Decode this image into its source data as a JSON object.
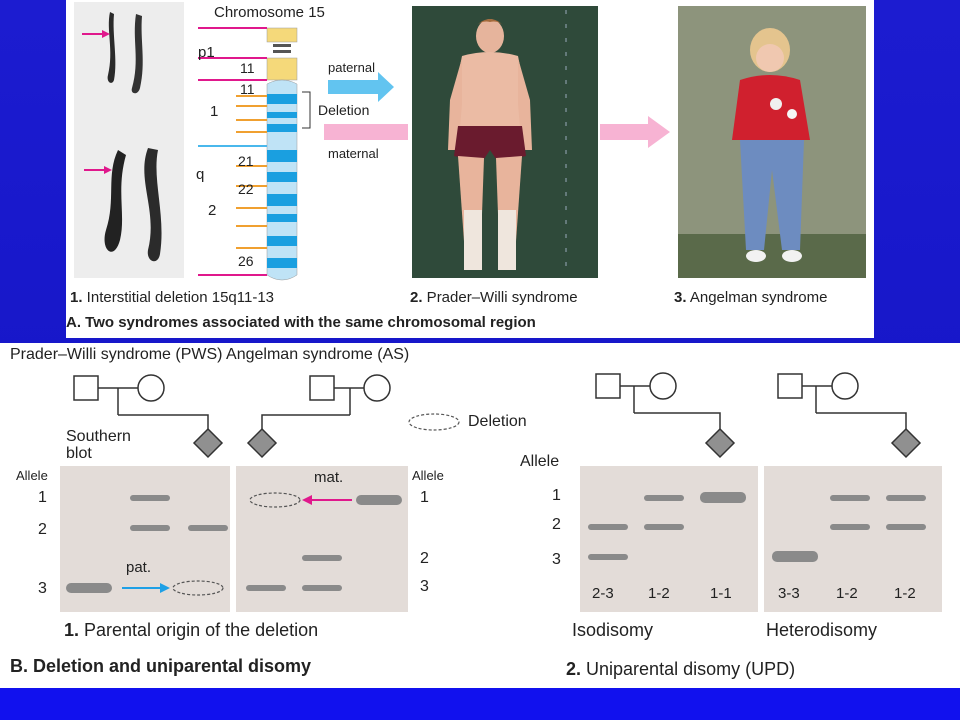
{
  "panelA": {
    "chromosome_title": "Chromosome 15",
    "arm_p": "p1",
    "band_11_upper": "11",
    "band_11_lower": "11",
    "arm_q_region1": "1",
    "deletion_label": "Deletion",
    "arm_q": "q",
    "band_21": "21",
    "band_22": "22",
    "arm_q_region2": "2",
    "band_26": "26",
    "paternal_label": "paternal",
    "maternal_label": "maternal",
    "caption1_num": "1.",
    "caption1_text": " Interstitial deletion 15q11-13",
    "caption2_num": "2.",
    "caption2_text": " Prader–Willi syndrome",
    "caption3_num": "3.",
    "caption3_text": " Angelman syndrome",
    "section_title": "A. Two syndromes associated with the same chromosomal region"
  },
  "panelB": {
    "header": "Prader–Willi syndrome (PWS) Angelman syndrome (AS)",
    "southern_blot_1": "Southern",
    "southern_blot_2": "blot",
    "deletion_legend": "Deletion",
    "allele_left": "Allele",
    "allele_mid": "Allele",
    "allele_right": "Allele",
    "a1": "1",
    "a2": "2",
    "a3": "3",
    "m1": "1",
    "m2": "2",
    "m3": "3",
    "r1": "1",
    "r2": "2",
    "r3": "3",
    "pat_label": "pat.",
    "mat_label": "mat.",
    "iso_lanes": [
      "2-3",
      "1-2",
      "1-1"
    ],
    "hetero_lanes": [
      "3-3",
      "1-2",
      "1-2"
    ],
    "caption1_num": "1.",
    "caption1_text": " Parental origin of the deletion",
    "isodisomy": "Isodisomy",
    "heterodisomy": "Heterodisomy",
    "section_title": "B. Deletion and uniparental disomy",
    "caption2_num": "2.",
    "caption2_text": " Uniparental disomy (UPD)"
  },
  "colors": {
    "background_blue": "#1a1ad6",
    "magenta": "#e0188c",
    "cyan": "#4ab8ec",
    "pink_arrow": "#f7b3d3",
    "orange": "#f0a030",
    "gel_gray": "#e3dcd8",
    "band_gray": "#8a8a8a"
  }
}
